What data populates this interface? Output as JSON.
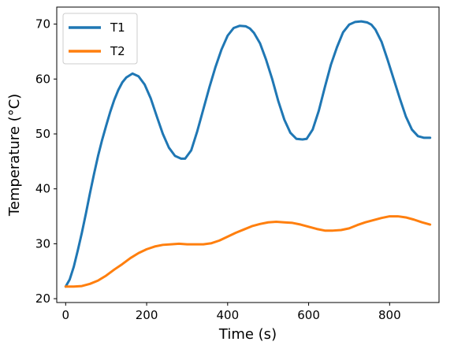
{
  "chart_data": {
    "type": "line",
    "xlabel": "Time (s)",
    "ylabel": "Temperature (°C)",
    "xlim": [
      -22,
      922
    ],
    "ylim": [
      19.3,
      73.1
    ],
    "xticks": [
      0,
      200,
      400,
      600,
      800
    ],
    "yticks": [
      20,
      30,
      40,
      50,
      60,
      70
    ],
    "grid": false,
    "legend": "top-left",
    "series": [
      {
        "name": "T1",
        "color": "#1f77b4",
        "x": [
          0,
          10,
          20,
          30,
          40,
          50,
          60,
          70,
          80,
          90,
          100,
          110,
          120,
          130,
          140,
          150,
          165,
          180,
          195,
          210,
          225,
          240,
          255,
          270,
          285,
          295,
          310,
          325,
          340,
          355,
          370,
          385,
          400,
          415,
          430,
          445,
          455,
          465,
          480,
          495,
          510,
          525,
          540,
          555,
          570,
          585,
          595,
          610,
          625,
          640,
          655,
          670,
          685,
          700,
          715,
          730,
          745,
          755,
          765,
          780,
          795,
          810,
          825,
          840,
          855,
          870,
          885,
          900
        ],
        "y": [
          22.2,
          23.5,
          25.8,
          28.8,
          32.0,
          35.5,
          39.2,
          42.7,
          46.0,
          48.9,
          51.5,
          54.0,
          56.2,
          58.0,
          59.4,
          60.3,
          61.0,
          60.5,
          59.0,
          56.5,
          53.2,
          50.0,
          47.5,
          46.0,
          45.5,
          45.5,
          47.0,
          50.5,
          54.5,
          58.5,
          62.2,
          65.4,
          67.9,
          69.3,
          69.7,
          69.6,
          69.2,
          68.4,
          66.5,
          63.5,
          60.0,
          56.0,
          52.6,
          50.2,
          49.1,
          49.0,
          49.1,
          50.8,
          54.2,
          58.5,
          62.6,
          65.8,
          68.5,
          69.9,
          70.4,
          70.5,
          70.3,
          69.9,
          69.0,
          66.8,
          63.5,
          60.0,
          56.5,
          53.2,
          50.8,
          49.6,
          49.3,
          49.3
        ]
      },
      {
        "name": "T2",
        "color": "#ff7f0e",
        "x": [
          0,
          20,
          40,
          60,
          80,
          100,
          120,
          140,
          160,
          180,
          200,
          220,
          240,
          260,
          280,
          300,
          320,
          340,
          360,
          380,
          400,
          420,
          440,
          460,
          480,
          500,
          520,
          540,
          560,
          580,
          600,
          620,
          640,
          660,
          680,
          700,
          720,
          740,
          760,
          780,
          800,
          820,
          840,
          860,
          880,
          900
        ],
        "y": [
          22.2,
          22.2,
          22.3,
          22.7,
          23.3,
          24.2,
          25.3,
          26.3,
          27.4,
          28.3,
          29.0,
          29.5,
          29.8,
          29.9,
          30.0,
          29.9,
          29.9,
          29.9,
          30.1,
          30.6,
          31.3,
          32.0,
          32.6,
          33.2,
          33.6,
          33.9,
          34.0,
          33.9,
          33.8,
          33.5,
          33.1,
          32.7,
          32.4,
          32.4,
          32.5,
          32.8,
          33.4,
          33.9,
          34.3,
          34.7,
          35.0,
          35.0,
          34.8,
          34.4,
          33.9,
          33.5
        ]
      }
    ]
  }
}
